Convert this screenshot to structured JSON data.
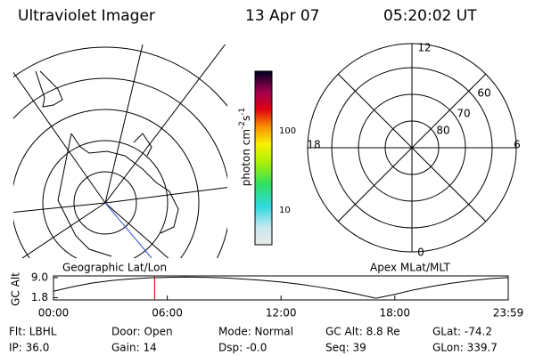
{
  "header": {
    "instrument": "Ultraviolet Imager",
    "date": "13 Apr 07",
    "time": "05:20:02 UT"
  },
  "geographic_map": {
    "label": "Geographic Lat/Lon"
  },
  "colorbar": {
    "unit": [
      "photon cm",
      "-2",
      "s",
      "-1"
    ],
    "ticks": [
      {
        "value": 100,
        "label": "100"
      },
      {
        "value": 10,
        "label": "10"
      }
    ]
  },
  "apex_grid": {
    "label": "Apex MLat/MLT",
    "mlt_labels": [
      "12",
      "6",
      "0",
      "18"
    ],
    "mlat_labels": [
      "60",
      "70",
      "80"
    ]
  },
  "chart_data": {
    "type": "line",
    "ylabel": "GC Alt",
    "x": [
      0,
      1,
      2,
      3,
      4,
      5,
      6,
      7,
      8,
      9,
      10,
      11,
      12,
      13,
      14,
      15,
      16,
      17,
      18,
      19,
      20,
      21,
      22,
      23,
      23.983
    ],
    "series": [
      {
        "name": "GC Alt",
        "color": "#000000",
        "values": [
          4.1,
          5.7,
          7.0,
          7.9,
          8.5,
          8.9,
          9.1,
          9.2,
          9.1,
          8.9,
          8.5,
          8.0,
          7.4,
          6.6,
          5.6,
          4.5,
          3.1,
          1.6,
          3.0,
          4.6,
          5.9,
          7.0,
          7.9,
          8.6,
          9.0
        ]
      }
    ],
    "marker_x": 5.334,
    "marker_color": "#cc0000",
    "xlim": [
      0,
      23.983
    ],
    "ylim": [
      1.0,
      9.6
    ],
    "xticks": [
      {
        "value": 0,
        "label": "00:00"
      },
      {
        "value": 6,
        "label": "06:00"
      },
      {
        "value": 12,
        "label": "12:00"
      },
      {
        "value": 18,
        "label": "18:00"
      },
      {
        "value": 23.983,
        "label": "23:59"
      }
    ],
    "yticks": [
      {
        "value": 9.0,
        "label": "9.0"
      },
      {
        "value": 1.8,
        "label": "1.8"
      }
    ]
  },
  "info": [
    [
      "Flt: LBHL",
      "Door: Open",
      "Mode: Normal",
      "GC Alt: 8.8 Re",
      "GLat: -74.2"
    ],
    [
      "IP: 36.0",
      "Gain: 14",
      "Dsp: -0.0",
      "Seq: 39",
      "GLon: 339.7"
    ]
  ]
}
